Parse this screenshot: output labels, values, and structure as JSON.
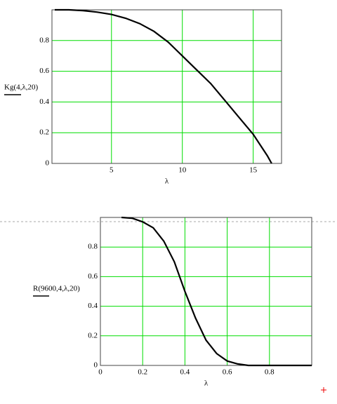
{
  "chart_data": [
    {
      "type": "line",
      "ylabel": "Kg(4,λ,20)",
      "xlabel": "λ",
      "x": [
        1,
        2,
        3,
        4,
        5,
        6,
        7,
        8,
        9,
        10,
        11,
        12,
        13,
        14,
        15,
        16,
        16.3
      ],
      "values": [
        1.0,
        1.0,
        0.995,
        0.985,
        0.97,
        0.945,
        0.91,
        0.86,
        0.79,
        0.7,
        0.61,
        0.52,
        0.41,
        0.3,
        0.19,
        0.05,
        0.0
      ],
      "color": "#000000",
      "grid": true,
      "grid_color": "#00dd00",
      "xlim": [
        0.8,
        17
      ],
      "xticks": [
        5,
        10,
        15
      ],
      "ylim": [
        0,
        1
      ],
      "yticks": [
        0,
        0.2,
        0.4,
        0.6,
        0.8
      ]
    },
    {
      "type": "line",
      "ylabel": "R(9600,4,λ,20)",
      "xlabel": "λ",
      "x": [
        0.1,
        0.15,
        0.2,
        0.25,
        0.3,
        0.35,
        0.4,
        0.45,
        0.5,
        0.55,
        0.6,
        0.65,
        0.7,
        0.8,
        0.9,
        1.0
      ],
      "values": [
        1.0,
        0.995,
        0.97,
        0.93,
        0.84,
        0.7,
        0.5,
        0.32,
        0.17,
        0.08,
        0.03,
        0.01,
        0.0,
        0.0,
        0.0,
        0.0
      ],
      "color": "#000000",
      "grid": true,
      "grid_color": "#00dd00",
      "xlim": [
        0,
        1
      ],
      "xticks": [
        0,
        0.2,
        0.4,
        0.6,
        0.8
      ],
      "ylim": [
        0,
        1
      ],
      "yticks": [
        0,
        0.2,
        0.4,
        0.6,
        0.8
      ]
    }
  ]
}
